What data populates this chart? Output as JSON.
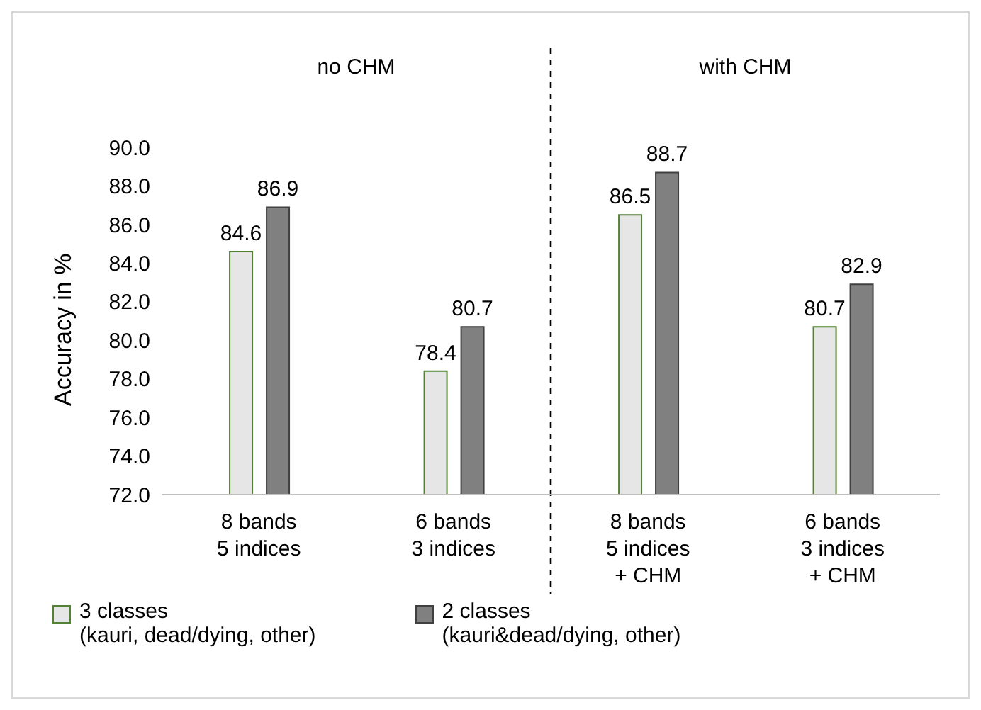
{
  "chart_data": {
    "type": "bar",
    "ylabel": "Accuracy in %",
    "categories": [
      "8 bands\n5 indices",
      "6 bands\n3 indices",
      "8 bands\n5 indices\n+ CHM",
      "6 bands\n3 indices\n+ CHM"
    ],
    "series": [
      {
        "name": "3 classes\n(kauri, dead/dying, other)",
        "color": "#e7e6e6",
        "values": [
          84.6,
          78.4,
          86.5,
          80.7
        ]
      },
      {
        "name": "2 classes\n(kauri&dead/dying, other)",
        "color": "#808080",
        "values": [
          86.9,
          80.7,
          88.7,
          82.9
        ]
      }
    ],
    "ylim": [
      72,
      90
    ],
    "yticks": [
      {
        "value": 72,
        "label": "72.0"
      },
      {
        "value": 74,
        "label": "74.0"
      },
      {
        "value": 76,
        "label": "76.0"
      },
      {
        "value": 78,
        "label": "78.0"
      },
      {
        "value": 80,
        "label": "80.0"
      },
      {
        "value": 82,
        "label": "82.0"
      },
      {
        "value": 84,
        "label": "84.0"
      },
      {
        "value": 86,
        "label": "86.0"
      },
      {
        "value": 88,
        "label": "88.0"
      },
      {
        "value": 90,
        "label": "90.0"
      }
    ],
    "annotations": [
      "no CHM",
      "with CHM"
    ],
    "data_labels": true,
    "legend": "bottom",
    "grid": false
  }
}
